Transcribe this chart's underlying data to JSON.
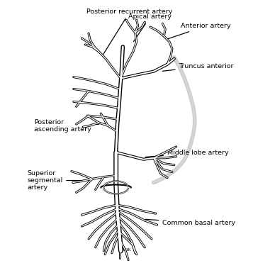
{
  "bg_color": "#ffffff",
  "line_color": "#000000",
  "figsize": [
    3.57,
    3.78
  ],
  "dpi": 100,
  "labels": {
    "posterior_recurrent": "Posterior recurrent artery",
    "apical": "Apical artery",
    "anterior": "Anterior artery",
    "truncus_anterior": "Truncus anterior",
    "posterior_ascending": "Posterior\nascending artery",
    "middle_lobe": "Middle lobe artery",
    "superior_segmental": "Superior\nsegmental\nartery",
    "common_basal": "Common basal artery"
  },
  "vessel_lw_outer": 2.2,
  "vessel_lw_inner": 1.0,
  "trunk_lw_outer": 3.5,
  "trunk_lw_inner": 1.8
}
